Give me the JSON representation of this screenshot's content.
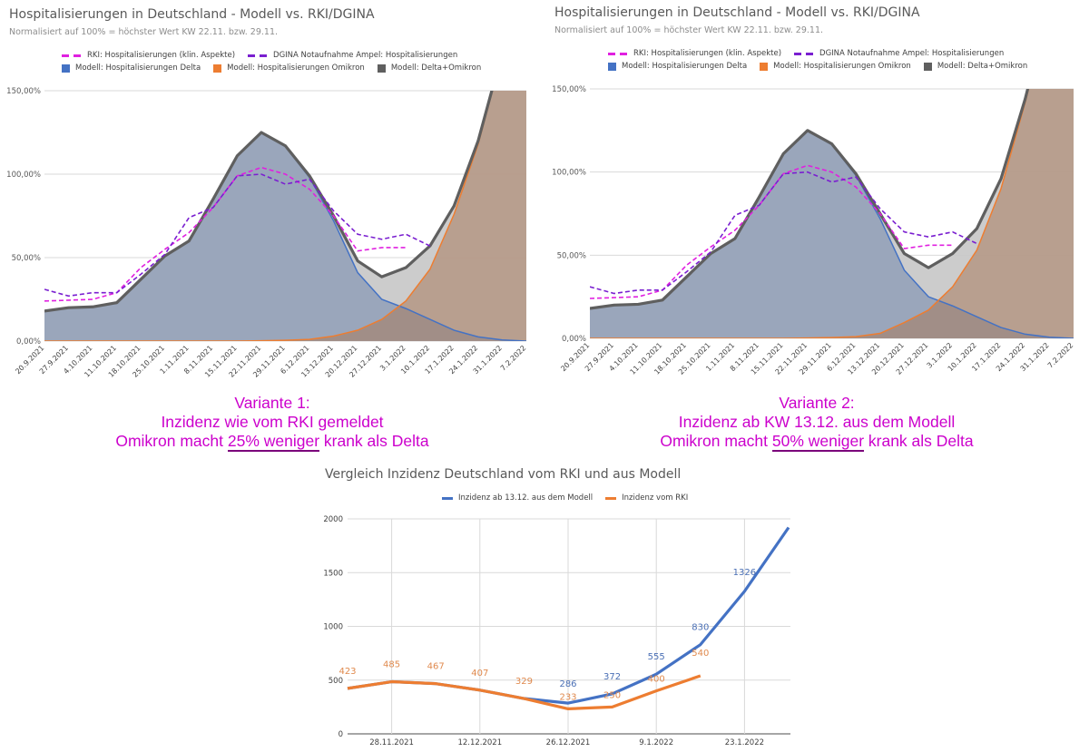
{
  "colors": {
    "delta": "#4472c4",
    "omikron": "#ed7d31",
    "total": "#5f5f5f",
    "rki": "#e020e0",
    "dgina": "#7a1fd0",
    "caption": "#cc00cc",
    "model_line": "#4472c4",
    "rki_line": "#ed7d31"
  },
  "chart_data": [
    {
      "type": "area",
      "title": "Hospitalisierungen in Deutschland - Modell vs. RKI/DGINA",
      "subtitle": "Normalisiert auf 100% = höchster Wert KW 22.11. bzw. 29.11.",
      "legend": {
        "placement": "top",
        "entries": [
          "RKI: Hospitalisierungen (klin. Aspekte)",
          "DGINA Notaufnahme Ampel: Hospitalisierungen",
          "Modell: Hospitalisierungen Delta",
          "Modell: Hospitalisierungen Omikron",
          "Modell: Delta+Omikron"
        ]
      },
      "ylim": [
        0,
        150
      ],
      "yticks": [
        "0,00%",
        "50,00%",
        "100,00%",
        "150,00%"
      ],
      "grid": true,
      "categories": [
        "20.9.2021",
        "27.9.2021",
        "4.10.2021",
        "11.10.2021",
        "18.10.2021",
        "25.10.2021",
        "1.11.2021",
        "8.11.2021",
        "15.11.2021",
        "22.11.2021",
        "29.11.2021",
        "6.12.2021",
        "13.12.2021",
        "20.12.2021",
        "27.12.2021",
        "3.1.2022",
        "10.1.2022",
        "17.1.2022",
        "24.1.2022",
        "31.1.2022",
        "7.2.2022"
      ],
      "series": [
        {
          "name": "Modell: Hospitalisierungen Delta",
          "kind": "area",
          "values": [
            18,
            20,
            20.5,
            23,
            37,
            51,
            60,
            85,
            111,
            125,
            116.5,
            98,
            72,
            41,
            25,
            19.5,
            13,
            6.5,
            2.5,
            0.7,
            0
          ]
        },
        {
          "name": "Modell: Hospitalisierungen Omikron",
          "kind": "area",
          "values": [
            0,
            0,
            0,
            0,
            0,
            0,
            0,
            0,
            0,
            0.2,
            0.5,
            1,
            3,
            6.5,
            13,
            24,
            43,
            76,
            118,
            172,
            250
          ]
        },
        {
          "name": "Modell: Delta+Omikron",
          "kind": "line-area",
          "values": [
            18,
            20,
            20.5,
            23,
            37,
            51,
            60,
            85,
            111,
            125,
            117,
            99,
            75,
            48,
            38.5,
            44,
            57,
            81,
            120,
            173,
            250
          ]
        },
        {
          "name": "RKI: Hospitalisierungen (klin. Aspekte)",
          "kind": "dashed",
          "values": [
            24,
            24.5,
            25,
            29,
            44,
            55,
            65,
            80,
            99,
            104,
            100,
            91,
            75,
            54,
            56,
            56,
            null,
            null,
            null,
            null,
            null
          ]
        },
        {
          "name": "DGINA Notaufnahme Ampel: Hospitalisierungen",
          "kind": "dashed",
          "values": [
            31,
            27,
            29,
            29,
            40,
            52,
            74,
            80,
            99,
            100,
            94,
            97,
            78,
            64,
            61,
            64,
            57,
            null,
            null,
            null,
            null
          ]
        }
      ],
      "caption": {
        "line1": "Variante 1:",
        "line2": "Inzidenz wie vom RKI gemeldet",
        "line3_pre": "Omikron macht ",
        "line3_u": "25% weniger",
        "line3_post": " krank als Delta"
      }
    },
    {
      "type": "area",
      "title": "Hospitalisierungen in Deutschland - Modell vs. RKI/DGINA",
      "subtitle": "Normalisiert auf 100% = höchster Wert KW 22.11. bzw. 29.11.",
      "legend": {
        "placement": "top",
        "entries": [
          "RKI: Hospitalisierungen (klin. Aspekte)",
          "DGINA Notaufnahme Ampel: Hospitalisierungen",
          "Modell: Hospitalisierungen Delta",
          "Modell: Hospitalisierungen Omikron",
          "Modell: Delta+Omikron"
        ]
      },
      "ylim": [
        0,
        150
      ],
      "yticks": [
        "0,00%",
        "50,00%",
        "100,00%",
        "150,00%"
      ],
      "grid": true,
      "categories": [
        "20.9.2021",
        "27.9.2021",
        "4.10.2021",
        "11.10.2021",
        "18.10.2021",
        "25.10.2021",
        "1.11.2021",
        "8.11.2021",
        "15.11.2021",
        "22.11.2021",
        "29.11.2021",
        "6.12.2021",
        "13.12.2021",
        "20.12.2021",
        "27.12.2021",
        "3.1.2022",
        "10.1.2022",
        "17.1.2022",
        "24.1.2022",
        "31.1.2022",
        "7.2.2022"
      ],
      "series": [
        {
          "name": "Modell: Hospitalisierungen Delta",
          "kind": "area",
          "values": [
            18,
            20,
            20.5,
            23,
            37,
            51,
            60,
            85,
            111,
            125,
            116.5,
            98,
            72,
            41,
            25,
            19.5,
            13,
            6.5,
            2.5,
            0.7,
            0
          ]
        },
        {
          "name": "Modell: Hospitalisierungen Omikron",
          "kind": "area",
          "values": [
            0,
            0,
            0,
            0,
            0,
            0,
            0,
            0,
            0,
            0.2,
            0.5,
            1,
            3,
            9.5,
            17,
            31,
            53,
            90,
            142,
            200,
            280
          ]
        },
        {
          "name": "Modell: Delta+Omikron",
          "kind": "line-area",
          "values": [
            18,
            20,
            20.5,
            23,
            37,
            51,
            60,
            85,
            111,
            125,
            117,
            99,
            75,
            51,
            42.5,
            51,
            66,
            96,
            144,
            201,
            280
          ]
        },
        {
          "name": "RKI: Hospitalisierungen (klin. Aspekte)",
          "kind": "dashed",
          "values": [
            24,
            24.5,
            25,
            29,
            44,
            55,
            65,
            80,
            99,
            104,
            100,
            91,
            75,
            54,
            56,
            56,
            null,
            null,
            null,
            null,
            null
          ]
        },
        {
          "name": "DGINA Notaufnahme Ampel: Hospitalisierungen",
          "kind": "dashed",
          "values": [
            31,
            27,
            29,
            29,
            40,
            52,
            74,
            80,
            99,
            100,
            94,
            97,
            78,
            64,
            61,
            64,
            57,
            null,
            null,
            null,
            null
          ]
        }
      ],
      "caption": {
        "line1": "Variante 2:",
        "line2": "Inzidenz ab KW 13.12. aus dem Modell",
        "line3_pre": "Omikron macht ",
        "line3_u": "50% weniger",
        "line3_post": " krank als Delta"
      }
    },
    {
      "type": "line",
      "title": "Vergleich Inzidenz Deutschland vom RKI und aus Modell",
      "legend": {
        "placement": "top",
        "entries": [
          "Inzidenz ab 13.12. aus dem Modell",
          "Inzidenz vom RKI"
        ]
      },
      "ylim": [
        0,
        2000
      ],
      "yticks": [
        "0",
        "500",
        "1000",
        "1500",
        "2000"
      ],
      "xtick_labels": [
        "28.11.2021",
        "12.12.2021",
        "26.12.2021",
        "9.1.2022",
        "23.1.2022"
      ],
      "grid": true,
      "x": [
        "21.11.2021",
        "28.11.2021",
        "5.12.2021",
        "12.12.2021",
        "19.12.2021",
        "26.12.2021",
        "2.1.2022",
        "9.1.2022",
        "16.1.2022",
        "23.1.2022",
        "30.1.2022"
      ],
      "series": [
        {
          "name": "Inzidenz ab 13.12. aus dem Modell",
          "values": [
            423,
            485,
            467,
            407,
            329,
            286,
            372,
            555,
            830,
            1326,
            1920
          ],
          "labels": [
            null,
            null,
            null,
            null,
            null,
            "286",
            "372",
            "555",
            "830",
            "1326",
            null
          ]
        },
        {
          "name": "Inzidenz vom RKI",
          "values": [
            423,
            485,
            467,
            407,
            329,
            233,
            250,
            400,
            540,
            null,
            null
          ],
          "labels": [
            "423",
            "485",
            "467",
            "407",
            "329",
            "233",
            "250",
            "400",
            "540",
            null,
            null
          ]
        }
      ]
    }
  ]
}
